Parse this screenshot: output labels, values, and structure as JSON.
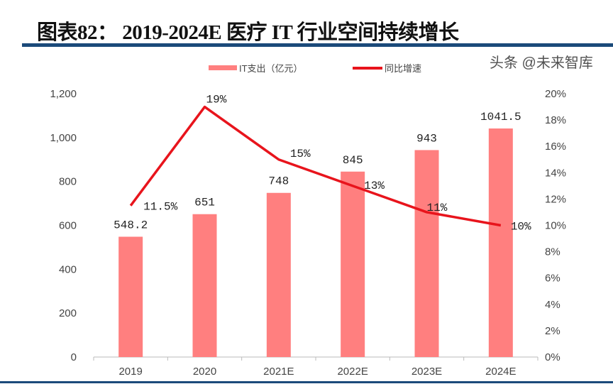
{
  "title": "图表82：  2019-2024E 医疗 IT 行业空间持续增长",
  "watermark": "头条 @未来智库",
  "chart_data": {
    "type": "bar+line",
    "categories": [
      "2019",
      "2020",
      "2021E",
      "2022E",
      "2023E",
      "2024E"
    ],
    "series": [
      {
        "name": "IT支出（亿元）",
        "type": "bar",
        "axis": "left",
        "color": "#ff7f7f",
        "values": [
          548.2,
          651,
          748,
          845,
          943,
          1041.5
        ],
        "labels": [
          "548.2",
          "651",
          "748",
          "845",
          "943",
          "1041.5"
        ]
      },
      {
        "name": "同比增速",
        "type": "line",
        "axis": "right",
        "color": "#e8141c",
        "values": [
          11.5,
          19,
          15,
          13,
          11,
          10
        ],
        "labels": [
          "11.5%",
          "19%",
          "15%",
          "13%",
          "11%",
          "10%"
        ]
      }
    ],
    "y_left": {
      "ylim": [
        0,
        1200
      ],
      "ticks": [
        "0",
        "200",
        "400",
        "600",
        "800",
        "1,000",
        "1,200"
      ]
    },
    "y_right": {
      "ylim": [
        0,
        20
      ],
      "ticks": [
        "0%",
        "2%",
        "4%",
        "6%",
        "8%",
        "10%",
        "12%",
        "14%",
        "16%",
        "18%",
        "20%"
      ]
    },
    "legend": "top",
    "grid": false
  }
}
